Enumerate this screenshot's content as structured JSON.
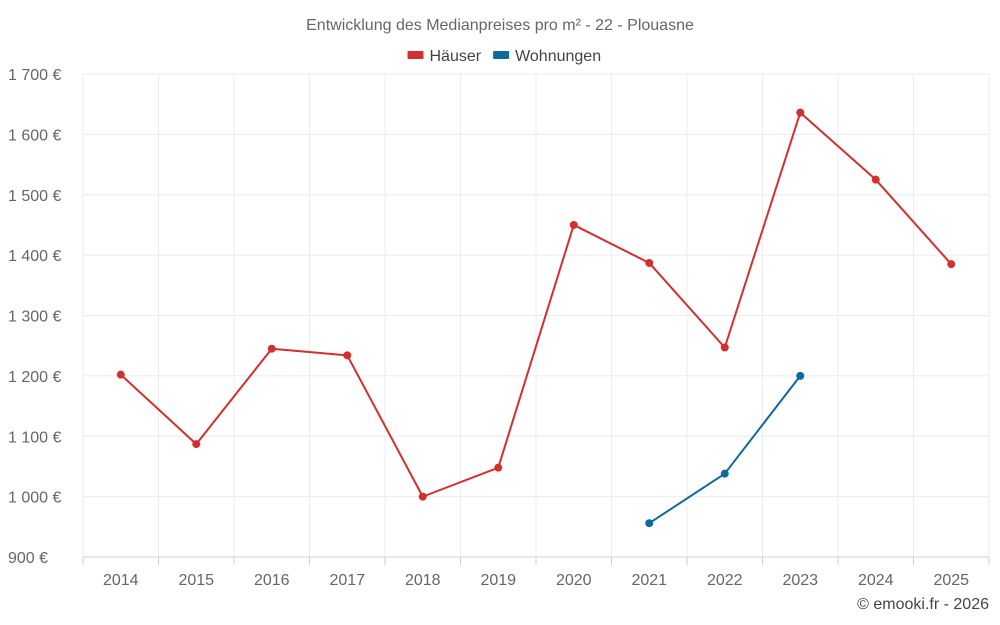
{
  "chart_data": {
    "type": "line",
    "title": "Entwicklung des Medianpreises pro m² - 22 - Plouasne",
    "categories": [
      "2014",
      "2015",
      "2016",
      "2017",
      "2018",
      "2019",
      "2020",
      "2021",
      "2022",
      "2023",
      "2024",
      "2025"
    ],
    "y_ticks": [
      "900 €",
      "1 000 €",
      "1 100 €",
      "1 200 €",
      "1 300 €",
      "1 400 €",
      "1 500 €",
      "1 600 €",
      "1 700 €"
    ],
    "y_tick_values": [
      900,
      1000,
      1100,
      1200,
      1300,
      1400,
      1500,
      1600,
      1700
    ],
    "ylim": [
      900,
      1700
    ],
    "legend_position": "top",
    "series": [
      {
        "name": "Häuser",
        "color": "#d32f2f",
        "values": [
          1202,
          1087,
          1245,
          1234,
          1000,
          1048,
          1450,
          1387,
          1247,
          1636,
          1525,
          1385
        ]
      },
      {
        "name": "Wohnungen",
        "color": "#0d6aa0",
        "values": [
          null,
          null,
          null,
          null,
          null,
          null,
          null,
          956,
          1038,
          1200,
          null,
          null
        ]
      }
    ],
    "credit": "© emooki.fr - 2026"
  }
}
